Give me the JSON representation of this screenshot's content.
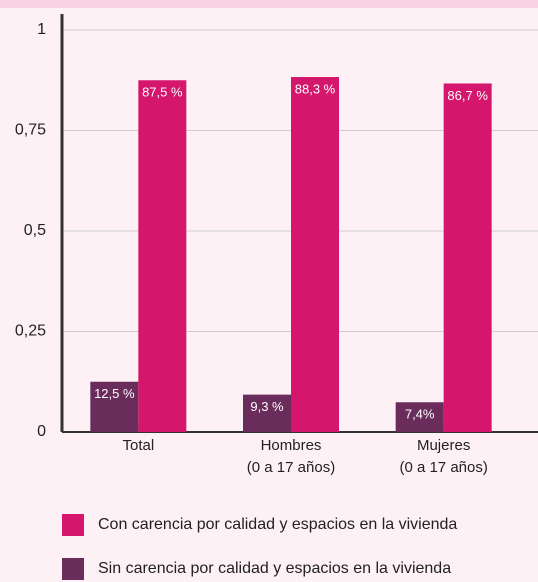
{
  "chart_data": {
    "type": "bar",
    "categories": [
      "Total",
      "Hombres\n(0 a 17 años)",
      "Mujeres\n(0 a 17 años)"
    ],
    "series": [
      {
        "name": "Con carencia por calidad y espacios en la vivienda",
        "color": "#d4176c",
        "values": [
          0.875,
          0.883,
          0.867
        ],
        "value_labels": [
          "87,5 %",
          "88,3 %",
          "86,7 %"
        ]
      },
      {
        "name": "Sin carencia por calidad y espacios en la vivienda",
        "color": "#6a2c5a",
        "values": [
          0.125,
          0.093,
          0.074
        ],
        "value_labels": [
          "12,5 %",
          "9,3 %",
          "7,4%"
        ]
      }
    ],
    "ylim": [
      0,
      1
    ],
    "yticks": [
      0,
      {
        "value": 0.25,
        "label": "0,25"
      },
      {
        "value": 0.5,
        "label": "0,5"
      },
      {
        "value": 0.75,
        "label": "0,75"
      },
      1
    ],
    "grid": true
  }
}
